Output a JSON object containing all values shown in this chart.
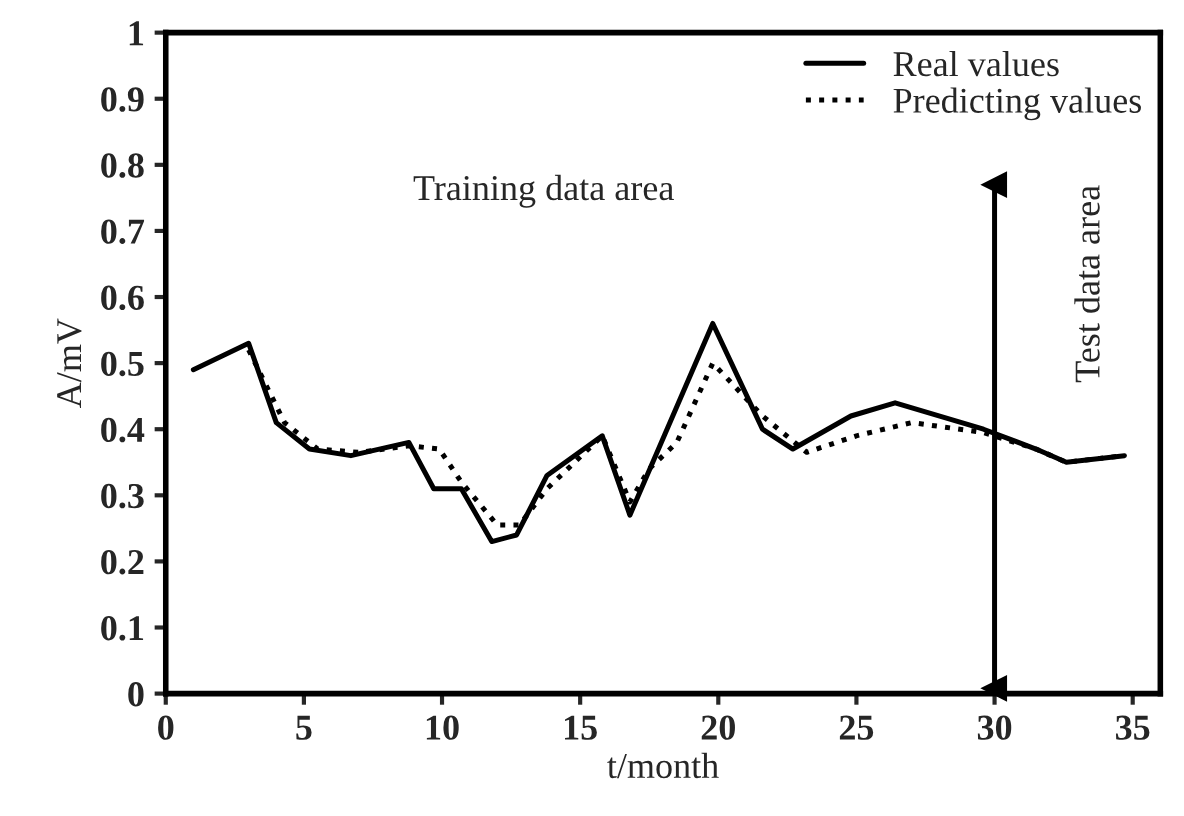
{
  "chart_data": {
    "type": "line",
    "xlabel": "t/month",
    "ylabel": "A/mV",
    "xlim": [
      0,
      36
    ],
    "xticks": [
      0,
      5,
      10,
      15,
      20,
      25,
      30,
      35
    ],
    "ylim": [
      0,
      1
    ],
    "yticks": [
      0,
      0.1,
      0.2,
      0.3,
      0.4,
      0.5,
      0.6,
      0.7,
      0.8,
      0.9,
      1
    ],
    "series": [
      {
        "name": "Real values",
        "color": "#000000",
        "line_style": "solid",
        "x": [
          1,
          3,
          4,
          5.2,
          6.7,
          8.8,
          9.7,
          10.7,
          11.8,
          12.7,
          13.8,
          15.8,
          16.8,
          19.8,
          21.6,
          22.7,
          24.8,
          26.4,
          29.6,
          31.5,
          32.6,
          34.7
        ],
        "values": [
          0.49,
          0.53,
          0.41,
          0.37,
          0.36,
          0.38,
          0.31,
          0.31,
          0.23,
          0.24,
          0.33,
          0.39,
          0.27,
          0.56,
          0.4,
          0.37,
          0.42,
          0.44,
          0.4,
          0.37,
          0.35,
          0.36
        ]
      },
      {
        "name": "Predicting values",
        "color": "#000000",
        "line_style": "dotted",
        "x": [
          3,
          4.3,
          5.5,
          7,
          8.8,
          9.9,
          10.7,
          12,
          12.8,
          13.8,
          15.8,
          16.8,
          17.5,
          18.5,
          19.8,
          21.6,
          23.2,
          25,
          27,
          29.6,
          31.5,
          32.6,
          34.7
        ],
        "values": [
          0.52,
          0.41,
          0.37,
          0.365,
          0.375,
          0.37,
          0.32,
          0.255,
          0.255,
          0.31,
          0.39,
          0.29,
          0.34,
          0.38,
          0.5,
          0.42,
          0.365,
          0.39,
          0.41,
          0.395,
          0.37,
          0.35,
          0.36
        ]
      }
    ],
    "ref_lines": [
      {
        "axis": "x",
        "value": 30,
        "label": null
      }
    ],
    "annotations": [
      "Training data area",
      "Test data area"
    ],
    "legend": "top right",
    "grid": false
  }
}
